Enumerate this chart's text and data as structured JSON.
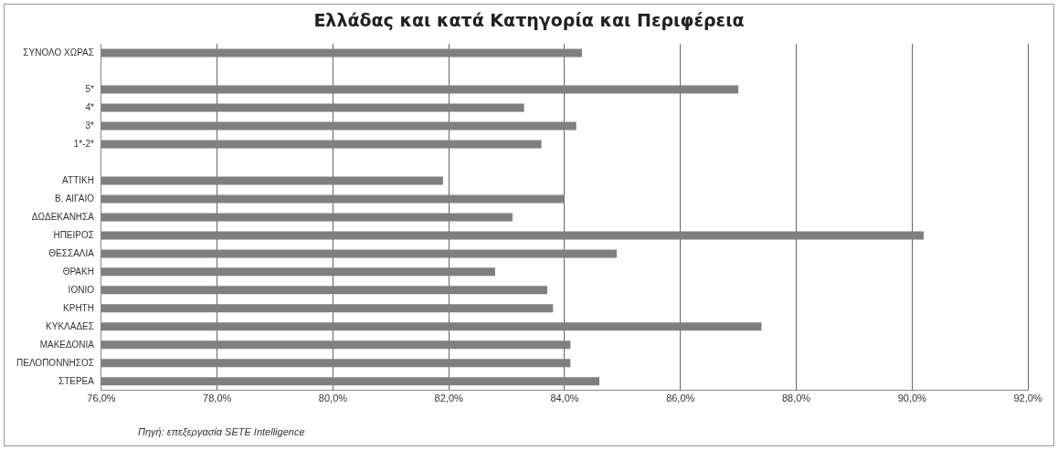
{
  "chart_data": {
    "type": "bar",
    "orientation": "horizontal",
    "title": "Ελλάδας και κατά Κατηγορία και Περιφέρεια",
    "categories": [
      "ΣΥΝΟΛΟ ΧΩΡΑΣ",
      null,
      "5*",
      "4*",
      "3*",
      "1*-2*",
      null,
      "ΑΤΤΙΚΗ",
      "Β. ΑΙΓΑΙΟ",
      "ΔΩΔΕΚΑΝΗΣΑ",
      "ΗΠΕΙΡΟΣ",
      "ΘΕΣΣΑΛΙΑ",
      "ΘΡΑΚΗ",
      "ΙΟΝΙΟ",
      "ΚΡΗΤΗ",
      "ΚΥΚΛΑΔΕΣ",
      "ΜΑΚΕΔΟΝΙΑ",
      "ΠΕΛΟΠΟΝΝΗΣΟΣ",
      "ΣΤΕΡΕΑ"
    ],
    "values": [
      84.3,
      null,
      87.0,
      83.3,
      84.2,
      83.6,
      null,
      81.9,
      84.0,
      83.1,
      90.2,
      84.9,
      82.8,
      83.7,
      83.8,
      87.4,
      84.1,
      84.1,
      84.6
    ],
    "color": "#7f7f7f",
    "xlim": [
      76,
      92
    ],
    "xticks": [
      {
        "value": 76,
        "label": "76,0%"
      },
      {
        "value": 78,
        "label": "78,0%"
      },
      {
        "value": 80,
        "label": "80,0%"
      },
      {
        "value": 82,
        "label": "82,0%"
      },
      {
        "value": 84,
        "label": "84,0%"
      },
      {
        "value": 86,
        "label": "86,0%"
      },
      {
        "value": 88,
        "label": "88,0%"
      },
      {
        "value": 90,
        "label": "90,0%"
      },
      {
        "value": 92,
        "label": "92,0%"
      }
    ],
    "grid": "x",
    "annotations": [
      "Πηγή: επεξεργασία SETE Intelligence"
    ]
  }
}
